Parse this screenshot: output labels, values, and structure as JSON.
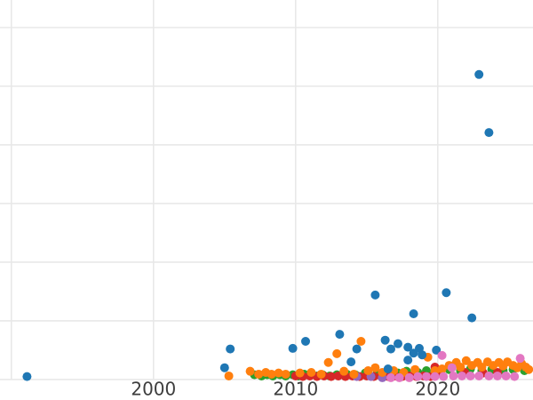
{
  "figure": {
    "background": "#ffffff",
    "grid_color": "#e8e8e8",
    "grid_width": 1.6,
    "tick_label_color": "#3d3d3d",
    "tick_font_size": 20
  },
  "chart_data": {
    "type": "scatter",
    "title": "",
    "xlabel": "",
    "ylabel": "",
    "legend_position": "none",
    "grid": true,
    "x_range": [
      1989.2,
      2026.7
    ],
    "y_range": [
      -0.35,
      6.47
    ],
    "x_gridlines": [
      1990,
      2000,
      2010,
      2020
    ],
    "y_gridlines": [
      0,
      1,
      2,
      3,
      4,
      5,
      6
    ],
    "x_ticks": [
      {
        "value": 2000,
        "label": "2000"
      },
      {
        "value": 2010,
        "label": "2010"
      },
      {
        "value": 2020,
        "label": "2020"
      }
    ],
    "marker_radius": 5,
    "series": [
      {
        "name": "green",
        "color": "#2ca02c",
        "points": [
          [
            2007.1,
            0.08
          ],
          [
            2007.6,
            0.06
          ],
          [
            2008.0,
            0.08
          ],
          [
            2008.4,
            0.06
          ],
          [
            2008.9,
            0.08
          ],
          [
            2009.3,
            0.06
          ],
          [
            2009.8,
            0.08
          ],
          [
            2010.2,
            0.06
          ],
          [
            2010.6,
            0.09
          ],
          [
            2011.1,
            0.08
          ],
          [
            2011.5,
            0.06
          ],
          [
            2011.9,
            0.08
          ],
          [
            2012.4,
            0.06
          ],
          [
            2012.9,
            0.08
          ],
          [
            2013.6,
            0.09
          ],
          [
            2014.2,
            0.08
          ],
          [
            2014.9,
            0.11
          ],
          [
            2015.7,
            0.09
          ],
          [
            2016.4,
            0.12
          ],
          [
            2017.2,
            0.11
          ],
          [
            2017.8,
            0.14
          ],
          [
            2018.6,
            0.12
          ],
          [
            2019.2,
            0.15
          ],
          [
            2019.9,
            0.14
          ],
          [
            2020.8,
            0.17
          ],
          [
            2021.6,
            0.15
          ],
          [
            2022.3,
            0.18
          ],
          [
            2023.1,
            0.15
          ],
          [
            2023.8,
            0.17
          ],
          [
            2024.6,
            0.15
          ],
          [
            2025.3,
            0.17
          ],
          [
            2026.1,
            0.15
          ]
        ]
      },
      {
        "name": "red",
        "color": "#d62728",
        "points": [
          [
            2010.0,
            0.06
          ],
          [
            2010.5,
            0.05
          ],
          [
            2011.0,
            0.06
          ],
          [
            2011.5,
            0.05
          ],
          [
            2012.0,
            0.06
          ],
          [
            2012.5,
            0.05
          ],
          [
            2013.0,
            0.06
          ],
          [
            2013.5,
            0.05
          ],
          [
            2014.0,
            0.06
          ],
          [
            2014.5,
            0.05
          ],
          [
            2015.0,
            0.06
          ],
          [
            2015.5,
            0.05
          ],
          [
            2016.0,
            0.06
          ],
          [
            2016.5,
            0.05
          ],
          [
            2017.0,
            0.06
          ],
          [
            2017.5,
            0.05
          ],
          [
            2018.0,
            0.06
          ],
          [
            2018.5,
            0.05
          ],
          [
            2019.0,
            0.06
          ],
          [
            2019.5,
            0.05
          ],
          [
            2019.8,
            0.21
          ],
          [
            2020.0,
            0.12
          ],
          [
            2021.9,
            0.12
          ],
          [
            2023.2,
            0.11
          ],
          [
            2024.2,
            0.12
          ]
        ]
      },
      {
        "name": "purple",
        "color": "#9467bd",
        "points": [
          [
            2014.3,
            0.05
          ],
          [
            2015.3,
            0.05
          ],
          [
            2016.1,
            0.03
          ]
        ]
      },
      {
        "name": "orange",
        "color": "#ff7f0e",
        "points": [
          [
            2005.3,
            0.06
          ],
          [
            2006.8,
            0.14
          ],
          [
            2007.4,
            0.09
          ],
          [
            2007.9,
            0.12
          ],
          [
            2008.3,
            0.09
          ],
          [
            2008.8,
            0.11
          ],
          [
            2009.3,
            0.09
          ],
          [
            2010.3,
            0.11
          ],
          [
            2011.1,
            0.12
          ],
          [
            2011.8,
            0.09
          ],
          [
            2012.3,
            0.29
          ],
          [
            2012.9,
            0.44
          ],
          [
            2013.4,
            0.14
          ],
          [
            2014.1,
            0.09
          ],
          [
            2014.6,
            0.65
          ],
          [
            2015.1,
            0.15
          ],
          [
            2015.6,
            0.2
          ],
          [
            2016.1,
            0.12
          ],
          [
            2016.9,
            0.15
          ],
          [
            2017.6,
            0.12
          ],
          [
            2018.4,
            0.17
          ],
          [
            2019.3,
            0.38
          ],
          [
            2019.8,
            0.15
          ],
          [
            2020.3,
            0.18
          ],
          [
            2020.8,
            0.24
          ],
          [
            2021.3,
            0.29
          ],
          [
            2021.6,
            0.21
          ],
          [
            2022.0,
            0.32
          ],
          [
            2022.4,
            0.24
          ],
          [
            2022.8,
            0.29
          ],
          [
            2023.1,
            0.21
          ],
          [
            2023.5,
            0.3
          ],
          [
            2023.9,
            0.24
          ],
          [
            2024.3,
            0.29
          ],
          [
            2024.6,
            0.23
          ],
          [
            2024.9,
            0.3
          ],
          [
            2025.3,
            0.24
          ],
          [
            2025.6,
            0.2
          ],
          [
            2025.9,
            0.27
          ],
          [
            2026.2,
            0.21
          ],
          [
            2026.4,
            0.17
          ]
        ]
      },
      {
        "name": "blue",
        "color": "#1f77b4",
        "points": [
          [
            1991.1,
            0.05
          ],
          [
            2005.0,
            0.2
          ],
          [
            2005.4,
            0.52
          ],
          [
            2009.8,
            0.53
          ],
          [
            2010.7,
            0.65
          ],
          [
            2013.1,
            0.77
          ],
          [
            2013.9,
            0.3
          ],
          [
            2014.3,
            0.52
          ],
          [
            2015.6,
            1.44
          ],
          [
            2016.3,
            0.67
          ],
          [
            2016.5,
            0.18
          ],
          [
            2016.7,
            0.52
          ],
          [
            2017.2,
            0.61
          ],
          [
            2017.9,
            0.55
          ],
          [
            2017.9,
            0.33
          ],
          [
            2018.3,
            0.45
          ],
          [
            2018.3,
            1.12
          ],
          [
            2018.7,
            0.53
          ],
          [
            2018.9,
            0.42
          ],
          [
            2019.9,
            0.5
          ],
          [
            2020.6,
            1.48
          ],
          [
            2022.4,
            1.05
          ],
          [
            2022.9,
            5.2
          ],
          [
            2023.6,
            4.21
          ]
        ]
      },
      {
        "name": "pink",
        "color": "#e377c2",
        "points": [
          [
            2016.7,
            0.03
          ],
          [
            2017.3,
            0.03
          ],
          [
            2018.0,
            0.03
          ],
          [
            2018.6,
            0.05
          ],
          [
            2019.2,
            0.05
          ],
          [
            2019.8,
            0.05
          ],
          [
            2020.3,
            0.41
          ],
          [
            2020.4,
            0.05
          ],
          [
            2021.0,
            0.2
          ],
          [
            2021.1,
            0.06
          ],
          [
            2021.7,
            0.06
          ],
          [
            2022.3,
            0.06
          ],
          [
            2022.9,
            0.06
          ],
          [
            2023.6,
            0.06
          ],
          [
            2024.2,
            0.06
          ],
          [
            2024.8,
            0.06
          ],
          [
            2025.4,
            0.05
          ],
          [
            2025.8,
            0.36
          ]
        ]
      }
    ]
  }
}
